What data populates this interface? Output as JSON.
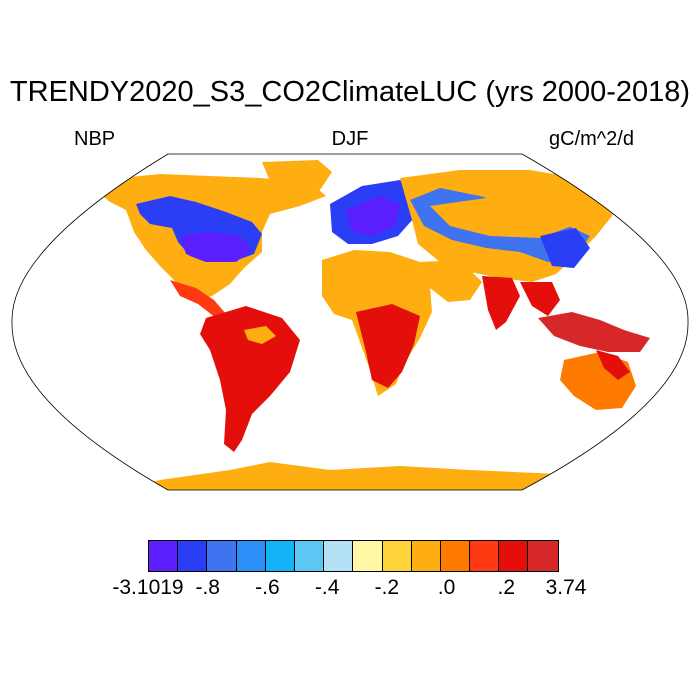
{
  "title": "TRENDY2020_S3_CO2ClimateLUC (yrs 2000-2018)",
  "left_label": "NBP",
  "center_label": "DJF",
  "right_label": "gC/m^2/d",
  "colorbar": {
    "colors": [
      "#5a1eff",
      "#2a3ff5",
      "#3f73f0",
      "#2c8ff8",
      "#13b4f7",
      "#5cc7f3",
      "#b4e1f5",
      "#fff7a6",
      "#ffd43a",
      "#ffae12",
      "#ff7b00",
      "#ff3a12",
      "#e40e0a",
      "#d62828"
    ],
    "labels": [
      "-3.1019",
      "-.8",
      "-.6",
      "-.4",
      "-.2",
      ".0",
      ".2",
      "3.74"
    ]
  },
  "colors": {
    "ocean": "#ffffff",
    "outline": "#000000"
  }
}
